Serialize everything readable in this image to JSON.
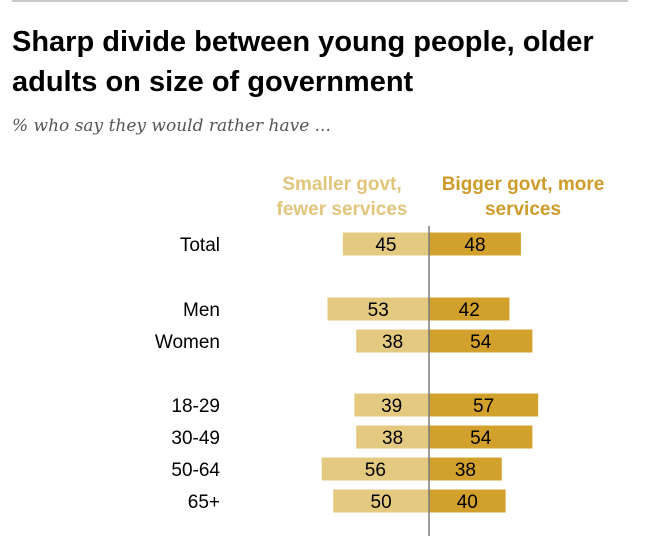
{
  "header": {
    "title": "Sharp divide between young people, older adults on size of government",
    "subtitle": "% who say they would rather have ..."
  },
  "chart_data": {
    "type": "bar",
    "orientation": "horizontal-diverging",
    "categories": [
      "Total",
      "Men",
      "Women",
      "18-29",
      "30-49",
      "50-64",
      "65+"
    ],
    "series": [
      {
        "name": "Smaller govt, fewer services",
        "values": [
          45,
          53,
          38,
          39,
          38,
          56,
          50
        ],
        "color": "#e3ca80"
      },
      {
        "name": "Bigger govt, more services",
        "values": [
          48,
          42,
          54,
          57,
          54,
          38,
          40
        ],
        "color": "#d2a02d"
      }
    ],
    "legend": {
      "smaller": "Smaller govt, fewer services",
      "bigger": "Bigger govt, more services"
    }
  }
}
